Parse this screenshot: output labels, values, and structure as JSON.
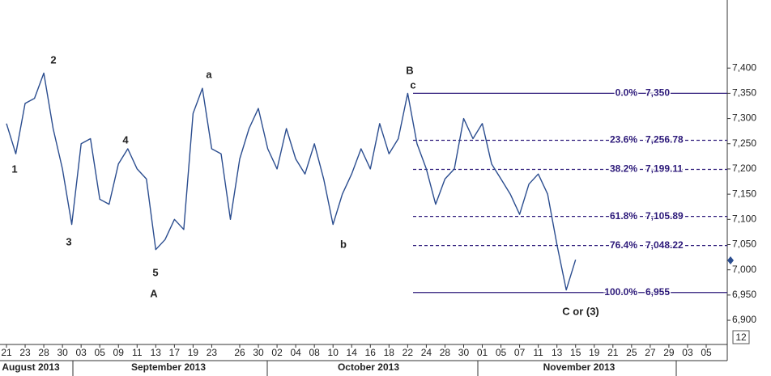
{
  "chart_data": {
    "type": "line",
    "categories": [
      "21",
      null,
      "23",
      null,
      "28",
      null,
      "30",
      null,
      "03",
      null,
      "05",
      null,
      "09",
      null,
      "11",
      null,
      "13",
      null,
      "17",
      null,
      "19",
      null,
      "23",
      null,
      null,
      "26",
      null,
      "30",
      null,
      "02",
      null,
      "04",
      null,
      "08",
      null,
      "10",
      null,
      "14",
      null,
      "16",
      null,
      "18",
      null,
      "22",
      null,
      "24",
      null,
      "28",
      null,
      "30",
      null,
      "01",
      null,
      "05",
      null,
      "07",
      null,
      "11",
      null,
      "13",
      null,
      "15",
      null,
      "19",
      null,
      "21",
      null,
      "25",
      null,
      "27",
      null,
      "29",
      null,
      "03",
      null,
      "05"
    ],
    "series": [
      {
        "color": "#2b4d8f",
        "values": [
          7290,
          7230,
          7330,
          7340,
          7390,
          7280,
          7200,
          7090,
          7250,
          7260,
          7140,
          7130,
          7210,
          7240,
          7200,
          7180,
          7040,
          7060,
          7100,
          7080,
          7310,
          7360,
          7240,
          7230,
          7100,
          7220,
          7280,
          7320,
          7240,
          7200,
          7280,
          7220,
          7190,
          7250,
          7180,
          7090,
          7150,
          7190,
          7240,
          7200,
          7290,
          7230,
          7260,
          7350,
          7250,
          7200,
          7130,
          7180,
          7200,
          7300,
          7260,
          7290,
          7210,
          7180,
          7150,
          7110,
          7170,
          7190,
          7150,
          7050,
          6960,
          7020,
          null,
          null,
          null,
          null,
          null,
          null,
          null,
          null,
          null,
          null,
          null,
          null,
          null,
          null
        ]
      }
    ],
    "months": [
      "August 2013",
      "September 2013",
      "October 2013",
      "November 2013"
    ],
    "ylim": [
      6852,
      7535
    ],
    "yticks": [
      {
        "value": 6900,
        "label": "6,900"
      },
      {
        "value": 6950,
        "label": "6,950"
      },
      {
        "value": 7000,
        "label": "7,000"
      },
      {
        "value": 7050,
        "label": "7,050"
      },
      {
        "value": 7100,
        "label": "7,100"
      },
      {
        "value": 7150,
        "label": "7,150"
      },
      {
        "value": 7200,
        "label": "7,200"
      },
      {
        "value": 7250,
        "label": "7,250"
      },
      {
        "value": 7300,
        "label": "7,300"
      },
      {
        "value": 7350,
        "label": "7,350"
      },
      {
        "value": 7400,
        "label": "7,400"
      }
    ],
    "fib_levels": [
      {
        "pct": "0.0%",
        "value": 7350,
        "label": "7,350",
        "style": "solid"
      },
      {
        "pct": "23.6%",
        "value": 7256.78,
        "label": "7,256.78",
        "style": "dashed"
      },
      {
        "pct": "38.2%",
        "value": 7199.11,
        "label": "7,199.11",
        "style": "dashed"
      },
      {
        "pct": "61.8%",
        "value": 7105.89,
        "label": "7,105.89",
        "style": "dashed"
      },
      {
        "pct": "76.4%",
        "value": 7048.22,
        "label": "7,048.22",
        "style": "dashed"
      },
      {
        "pct": "100.0%",
        "value": 6955,
        "label": "6,955",
        "style": "solid"
      }
    ],
    "annotations": [
      "1",
      "2",
      "3",
      "4",
      "5",
      "A",
      "a",
      "b",
      "B",
      "c",
      "C or (3)"
    ],
    "corner_label": "12"
  }
}
